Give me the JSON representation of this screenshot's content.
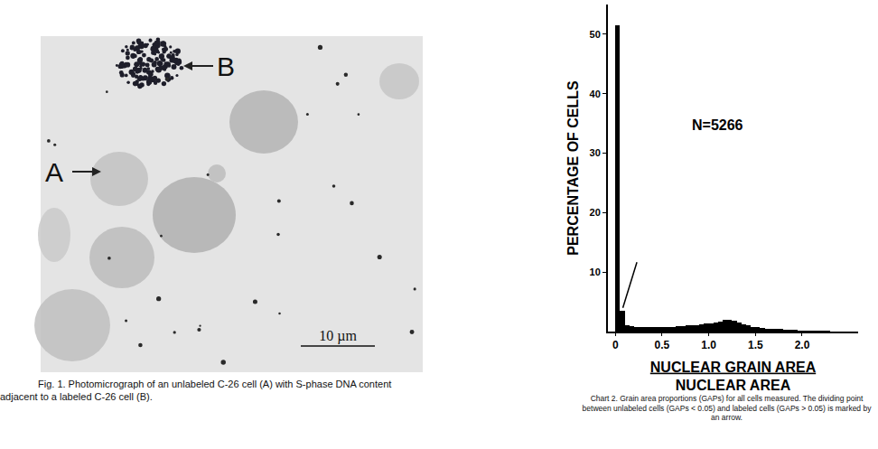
{
  "figure": {
    "type": "photomicrograph",
    "labels": [
      "A",
      "B"
    ],
    "scale_bar": "10 µm",
    "caption": "Fig. 1. Photomicrograph of an unlabeled C-26 cell (A) with S-phase DNA content adjacent to a labeled C-26 cell (B)."
  },
  "chart_data": {
    "type": "histogram",
    "ylabel": "PERCENTAGE OF CELLS",
    "xlabel": {
      "numerator": "NUCLEAR GRAIN AREA",
      "denominator": "NUCLEAR AREA"
    },
    "annotations": [
      "N=5266"
    ],
    "arrow": {
      "x": 0.08,
      "y": 4
    },
    "caption": "Chart 2. Grain area proportions (GAPs) for all cells measured. The dividing point between unlabeled cells (GAPs < 0.05) and labeled cells (GAPs > 0.05) is marked by an arrow.",
    "bins": [
      0,
      0.05,
      0.1,
      0.15,
      0.2,
      0.25,
      0.3,
      0.35,
      0.4,
      0.45,
      0.5,
      0.55,
      0.6,
      0.65,
      0.7,
      0.75,
      0.8,
      0.85,
      0.9,
      0.95,
      1.0,
      1.05,
      1.1,
      1.15,
      1.2,
      1.25,
      1.3,
      1.35,
      1.4,
      1.45,
      1.5,
      1.55,
      1.6,
      1.65,
      1.7,
      1.75,
      1.8,
      1.85,
      1.9,
      1.95,
      2.0,
      2.05,
      2.1,
      2.15,
      2.2,
      2.25,
      2.3,
      2.35,
      2.4
    ],
    "values": [
      51.5,
      3.5,
      1.0,
      0.9,
      0.8,
      0.8,
      0.7,
      0.7,
      0.8,
      0.7,
      0.7,
      0.8,
      0.8,
      0.9,
      0.9,
      1.0,
      1.0,
      1.1,
      1.2,
      1.3,
      1.4,
      1.5,
      1.7,
      1.9,
      2.0,
      1.8,
      1.5,
      1.2,
      1.0,
      0.8,
      0.7,
      0.6,
      0.5,
      0.5,
      0.4,
      0.4,
      0.3,
      0.3,
      0.3,
      0.2,
      0.2,
      0.2,
      0.1,
      0.1,
      0.1,
      0.1,
      0.05,
      0.05
    ],
    "color": "#000000",
    "xlim": [
      -0.08,
      2.6
    ],
    "ylim": [
      0,
      55
    ],
    "xticks": [
      0,
      0.5,
      {
        "value": 1,
        "label": "1.0"
      },
      1.5,
      {
        "value": 2,
        "label": "2.0"
      }
    ],
    "yticks": [
      10,
      20,
      30,
      40,
      50
    ],
    "grid": false
  }
}
